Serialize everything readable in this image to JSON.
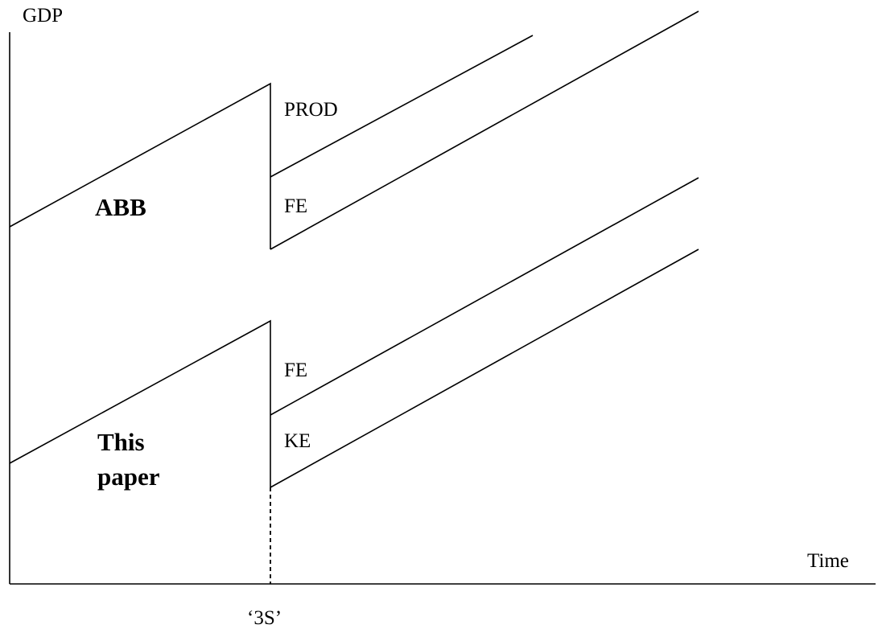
{
  "axes": {
    "y_label": "GDP",
    "x_label": "Time",
    "x_marker": "‘3S’"
  },
  "top_panel": {
    "title": "ABB",
    "upper_path_label": "PROD",
    "lower_path_label": "FE"
  },
  "bottom_panel": {
    "title_line1": "This",
    "title_line2": "paper",
    "upper_path_label": "FE",
    "lower_path_label": "KE"
  }
}
